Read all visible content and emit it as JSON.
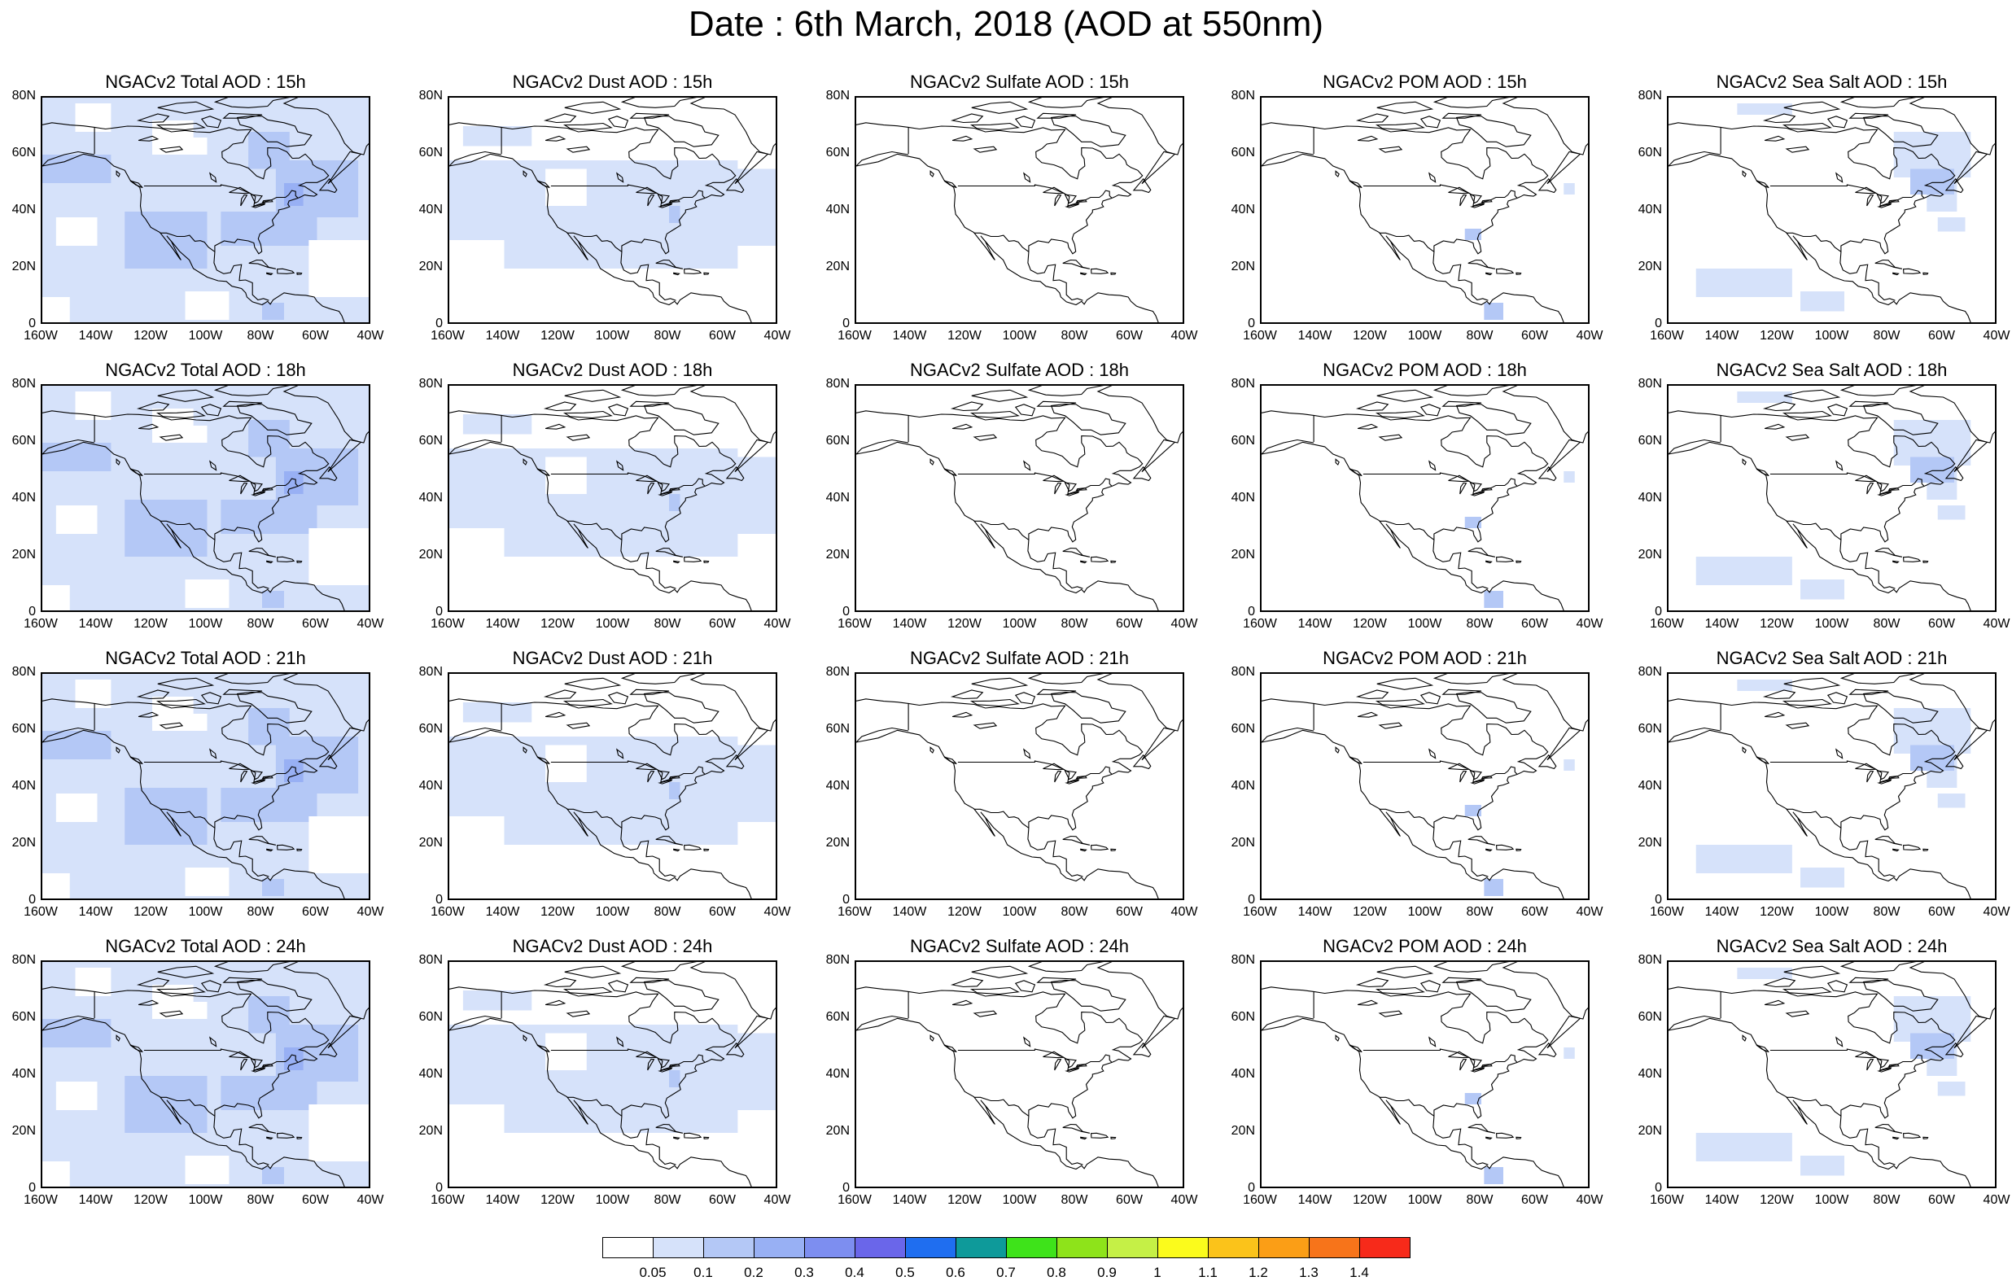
{
  "title": "Date : 6th March, 2018 (AOD at 550nm)",
  "lat_ticks": [
    "80N",
    "60N",
    "40N",
    "20N",
    "0"
  ],
  "lon_ticks": [
    "160W",
    "140W",
    "120W",
    "100W",
    "80W",
    "60W",
    "40W"
  ],
  "colorbar": {
    "labels": [
      "0.05",
      "0.1",
      "0.2",
      "0.3",
      "0.4",
      "0.5",
      "0.6",
      "0.7",
      "0.8",
      "0.9",
      "1",
      "1.1",
      "1.2",
      "1.3",
      "1.4"
    ],
    "colors": [
      "#ffffff",
      "#d6e2fa",
      "#b4c8f6",
      "#98b0f4",
      "#7d8ef0",
      "#6a66ea",
      "#1f6ef0",
      "#0e9a9a",
      "#3ee31a",
      "#8ee31a",
      "#c5f046",
      "#fbfb1c",
      "#fbc31a",
      "#fb9e16",
      "#f7741a",
      "#f72a1a"
    ]
  },
  "panels": [
    {
      "title": "NGACv2 Total AOD : 15h",
      "field": "total"
    },
    {
      "title": "NGACv2 Dust AOD : 15h",
      "field": "dust"
    },
    {
      "title": "NGACv2 Sulfate AOD : 15h",
      "field": "sulfate"
    },
    {
      "title": "NGACv2 POM AOD : 15h",
      "field": "pom"
    },
    {
      "title": "NGACv2 Sea Salt AOD : 15h",
      "field": "seasalt"
    },
    {
      "title": "NGACv2 Total AOD : 18h",
      "field": "total"
    },
    {
      "title": "NGACv2 Dust AOD : 18h",
      "field": "dust"
    },
    {
      "title": "NGACv2 Sulfate AOD : 18h",
      "field": "sulfate"
    },
    {
      "title": "NGACv2 POM AOD : 18h",
      "field": "pom"
    },
    {
      "title": "NGACv2 Sea Salt AOD : 18h",
      "field": "seasalt"
    },
    {
      "title": "NGACv2 Total AOD : 21h",
      "field": "total"
    },
    {
      "title": "NGACv2 Dust AOD : 21h",
      "field": "dust"
    },
    {
      "title": "NGACv2 Sulfate AOD : 21h",
      "field": "sulfate"
    },
    {
      "title": "NGACv2 POM AOD : 21h",
      "field": "pom"
    },
    {
      "title": "NGACv2 Sea Salt AOD : 21h",
      "field": "seasalt"
    },
    {
      "title": "NGACv2 Total AOD : 24h",
      "field": "total"
    },
    {
      "title": "NGACv2 Dust AOD : 24h",
      "field": "dust"
    },
    {
      "title": "NGACv2 Sulfate AOD : 24h",
      "field": "sulfate"
    },
    {
      "title": "NGACv2 POM AOD : 24h",
      "field": "pom"
    },
    {
      "title": "NGACv2 Sea Salt  AOD : 24h",
      "field": "seasalt"
    }
  ]
}
